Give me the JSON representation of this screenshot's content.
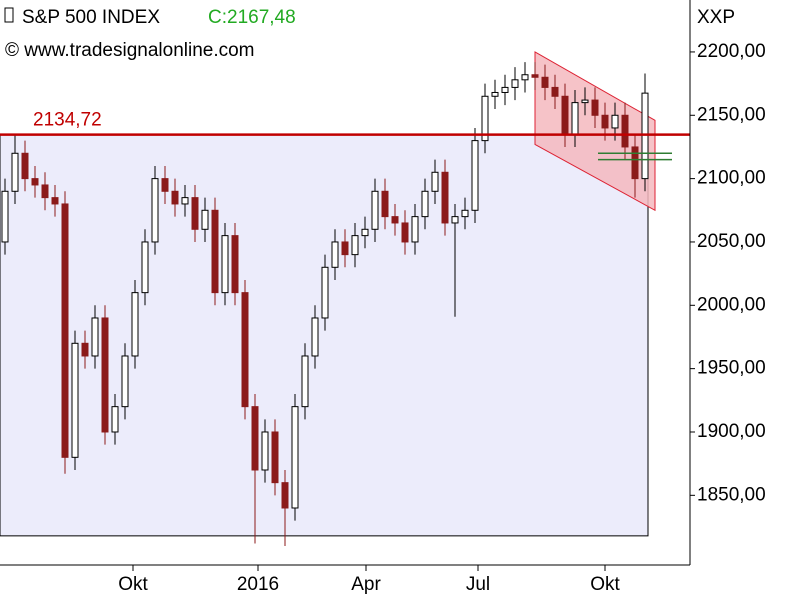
{
  "chart_data": {
    "type": "candlestick",
    "title": "S&P 500 INDEX",
    "last_close_label": "C:2167,48",
    "source": "© www.tradesignalonline.com",
    "symbol": "XXP",
    "open": [
      2050,
      2090,
      2120,
      2100,
      2095,
      2085,
      2080,
      1880,
      1970,
      1960,
      1990,
      1900,
      1920,
      1960,
      2010,
      2050,
      2100,
      2090,
      2080,
      2085,
      2060,
      2075,
      2010,
      2055,
      2010,
      1920,
      1870,
      1900,
      1860,
      1840,
      1920,
      1960,
      1990,
      2030,
      2050,
      2040,
      2055,
      2060,
      2090,
      2070,
      2065,
      2050,
      2070,
      2090,
      2105,
      2065,
      2070,
      2075,
      2130,
      2165,
      2168,
      2172,
      2178,
      2182,
      2180,
      2172,
      2165,
      2135,
      2160,
      2162,
      2150,
      2140,
      2150,
      2125,
      2100
    ],
    "high": [
      2100,
      2134,
      2130,
      2110,
      2105,
      2095,
      2090,
      1980,
      1980,
      2000,
      2000,
      1930,
      1970,
      2020,
      2060,
      2110,
      2110,
      2100,
      2095,
      2095,
      2085,
      2085,
      2065,
      2065,
      2020,
      1930,
      1910,
      1910,
      1870,
      1930,
      1970,
      2000,
      2040,
      2060,
      2060,
      2065,
      2070,
      2100,
      2100,
      2080,
      2075,
      2080,
      2100,
      2115,
      2115,
      2080,
      2085,
      2140,
      2175,
      2178,
      2182,
      2188,
      2192,
      2192,
      2190,
      2182,
      2175,
      2170,
      2172,
      2172,
      2160,
      2160,
      2160,
      2135,
      2183
    ],
    "low": [
      2040,
      2080,
      2090,
      2085,
      2075,
      2070,
      1867,
      1870,
      1950,
      1950,
      1890,
      1890,
      1910,
      1950,
      2000,
      2040,
      2080,
      2070,
      2070,
      2050,
      2050,
      2000,
      2000,
      2000,
      1910,
      1812,
      1860,
      1850,
      1810,
      1830,
      1910,
      1950,
      1980,
      2020,
      2030,
      2030,
      2045,
      2050,
      2060,
      2055,
      2040,
      2040,
      2060,
      2080,
      2055,
      1991,
      2060,
      2065,
      2120,
      2155,
      2158,
      2162,
      2168,
      2170,
      2162,
      2155,
      2125,
      2125,
      2150,
      2140,
      2130,
      2130,
      2115,
      2085,
      2090
    ],
    "close": [
      2090,
      2120,
      2100,
      2095,
      2085,
      2080,
      1880,
      1970,
      1960,
      1990,
      1900,
      1920,
      1960,
      2010,
      2050,
      2100,
      2090,
      2080,
      2085,
      2060,
      2075,
      2010,
      2055,
      2010,
      1920,
      1870,
      1900,
      1860,
      1840,
      1920,
      1960,
      1990,
      2030,
      2050,
      2040,
      2055,
      2060,
      2090,
      2070,
      2065,
      2050,
      2070,
      2090,
      2105,
      2065,
      2070,
      2075,
      2130,
      2165,
      2168,
      2172,
      2178,
      2182,
      2180,
      2172,
      2165,
      2135,
      2160,
      2162,
      2150,
      2140,
      2150,
      2125,
      2100,
      2167.48
    ],
    "up_color": "#ffffff",
    "down_color": "#8b1a1a",
    "xlim": [
      -0.5,
      68.5
    ],
    "ylim": [
      1795,
      2241
    ],
    "xticks": [
      {
        "value": 12.8,
        "label": "Okt"
      },
      {
        "value": 25.3,
        "label": "2016"
      },
      {
        "value": 36.1,
        "label": "Apr"
      },
      {
        "value": 47.3,
        "label": "Jul"
      },
      {
        "value": 60.0,
        "label": "Okt"
      }
    ],
    "yticks": [
      {
        "value": 1850,
        "label": "1850,00"
      },
      {
        "value": 1900,
        "label": "1900,00"
      },
      {
        "value": 1950,
        "label": "1950,00"
      },
      {
        "value": 2000,
        "label": "2000,00"
      },
      {
        "value": 2050,
        "label": "2050,00"
      },
      {
        "value": 2100,
        "label": "2100,00"
      },
      {
        "value": 2150,
        "label": "2150,00"
      },
      {
        "value": 2200,
        "label": "2200,00"
      }
    ],
    "level": {
      "value": 2134.72,
      "label": "2134,72",
      "color": "#c00000"
    },
    "range_box": {
      "x": [
        -0.5,
        64.3
      ],
      "y": [
        1818,
        2134.72
      ],
      "color": "#ececfb"
    },
    "channel": {
      "x": [
        53,
        65
      ],
      "upper": [
        2200,
        2146
      ],
      "lower": [
        2127,
        2075
      ],
      "color": "#f4b8be"
    },
    "support_lines": {
      "x": [
        59.3,
        66.7
      ],
      "values": [
        2120,
        2115
      ],
      "color": "#2e7d32"
    }
  }
}
